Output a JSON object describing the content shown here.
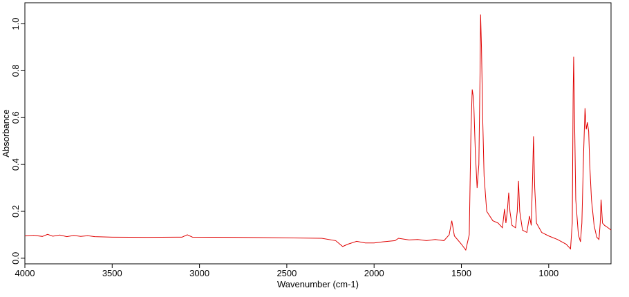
{
  "chart_data": {
    "type": "line",
    "x_label": "Wavenumber (cm-1)",
    "y_label": "Absorbance",
    "xlim": [
      4000,
      643
    ],
    "ylim": [
      -0.024,
      1.09
    ],
    "xticks": [
      4000,
      3500,
      3000,
      2500,
      2000,
      1500,
      1000
    ],
    "yticks": [
      {
        "value": 0,
        "label": "0.0"
      },
      {
        "value": 0.2,
        "label": "0.2"
      },
      {
        "value": 0.4,
        "label": "0.4"
      },
      {
        "value": 0.6,
        "label": "0.6"
      },
      {
        "value": 0.8,
        "label": "0.8"
      },
      {
        "value": 1.0,
        "label": "1.0"
      }
    ],
    "series": [
      {
        "color": "#e00000",
        "x": [
          4000,
          3950,
          3900,
          3870,
          3840,
          3800,
          3760,
          3720,
          3680,
          3640,
          3600,
          3500,
          3300,
          3100,
          3070,
          3040,
          2800,
          2500,
          2300,
          2220,
          2180,
          2150,
          2100,
          2050,
          2000,
          1950,
          1880,
          1860,
          1800,
          1750,
          1700,
          1650,
          1600,
          1570,
          1555,
          1540,
          1500,
          1475,
          1455,
          1445,
          1438,
          1430,
          1420,
          1410,
          1400,
          1393,
          1390,
          1385,
          1378,
          1370,
          1355,
          1320,
          1290,
          1265,
          1253,
          1245,
          1237,
          1229,
          1222,
          1210,
          1190,
          1180,
          1173,
          1166,
          1150,
          1125,
          1110,
          1100,
          1092,
          1087,
          1080,
          1070,
          1040,
          1000,
          950,
          900,
          875,
          865,
          860,
          857,
          852,
          845,
          830,
          818,
          810,
          800,
          792,
          785,
          778,
          771,
          765,
          755,
          740,
          725,
          712,
          705,
          700,
          692,
          680,
          660,
          643
        ],
        "values": [
          0.095,
          0.098,
          0.093,
          0.102,
          0.094,
          0.099,
          0.092,
          0.097,
          0.093,
          0.096,
          0.092,
          0.09,
          0.089,
          0.09,
          0.1,
          0.09,
          0.089,
          0.087,
          0.085,
          0.075,
          0.05,
          0.06,
          0.072,
          0.065,
          0.065,
          0.07,
          0.075,
          0.085,
          0.078,
          0.08,
          0.075,
          0.08,
          0.075,
          0.1,
          0.16,
          0.095,
          0.06,
          0.035,
          0.1,
          0.55,
          0.72,
          0.68,
          0.45,
          0.3,
          0.4,
          0.8,
          1.04,
          0.9,
          0.6,
          0.35,
          0.2,
          0.16,
          0.15,
          0.13,
          0.21,
          0.15,
          0.2,
          0.28,
          0.2,
          0.14,
          0.13,
          0.2,
          0.33,
          0.2,
          0.12,
          0.11,
          0.18,
          0.14,
          0.35,
          0.52,
          0.3,
          0.15,
          0.11,
          0.095,
          0.08,
          0.06,
          0.04,
          0.15,
          0.7,
          0.86,
          0.6,
          0.25,
          0.1,
          0.07,
          0.15,
          0.45,
          0.64,
          0.55,
          0.58,
          0.54,
          0.4,
          0.25,
          0.14,
          0.09,
          0.08,
          0.15,
          0.25,
          0.15,
          0.14,
          0.13,
          0.12
        ]
      }
    ]
  }
}
